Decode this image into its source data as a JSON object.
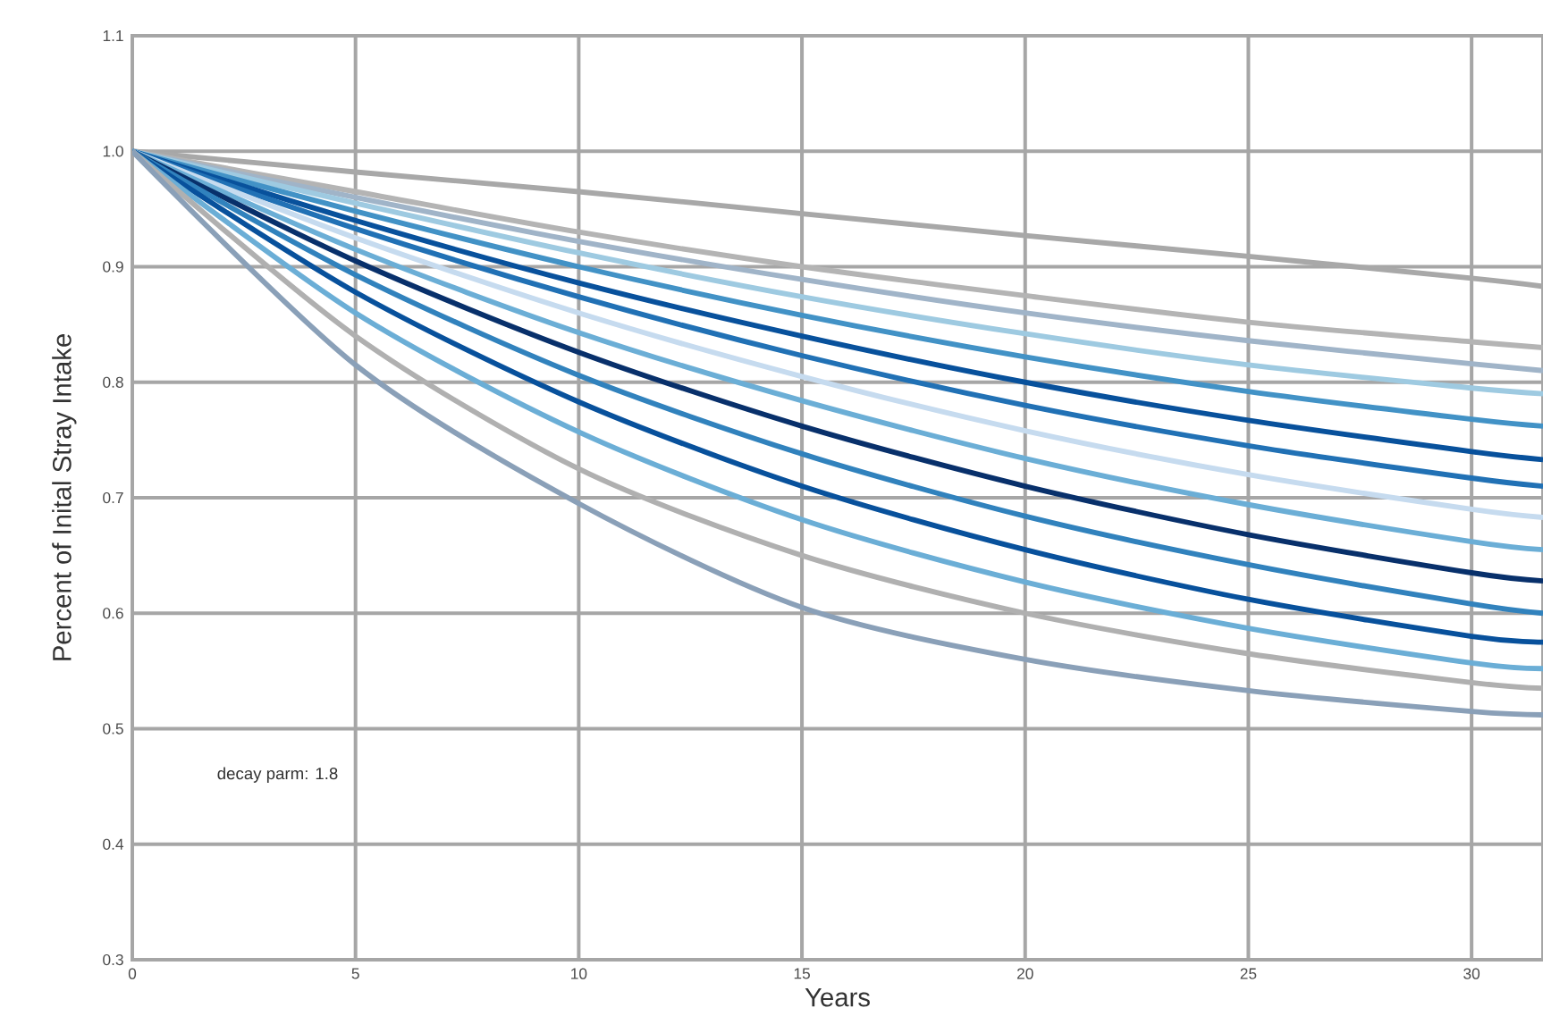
{
  "chart_data": {
    "type": "line",
    "xlabel": "Years",
    "ylabel": "Percent of Inital Stray Intake",
    "annotations": [
      "decay parm: 1.8"
    ],
    "x": [
      0,
      5,
      10,
      15,
      20,
      25,
      30,
      31.6
    ],
    "xlim": [
      0,
      31.6
    ],
    "ylim": [
      0.3,
      1.1
    ],
    "xticks": [
      0,
      5,
      10,
      15,
      20,
      25,
      30
    ],
    "yticks": [
      0.3,
      0.4,
      0.5,
      0.6,
      0.7,
      0.8,
      0.9,
      {
        "value": 1.0,
        "label": "1.0"
      },
      1.1
    ],
    "grid": true,
    "series": [
      {
        "color": "#a8a8a8",
        "values": [
          1,
          0.982,
          0.965,
          0.946,
          0.927,
          0.909,
          0.89,
          0.883
        ]
      },
      {
        "color": "#b4b4b4",
        "values": [
          1,
          0.965,
          0.93,
          0.9,
          0.875,
          0.852,
          0.835,
          0.83
        ]
      },
      {
        "color": "#a0b4c8",
        "values": [
          1,
          0.96,
          0.922,
          0.889,
          0.86,
          0.836,
          0.816,
          0.81
        ]
      },
      {
        "color": "#9ecae1",
        "values": [
          1,
          0.955,
          0.912,
          0.874,
          0.842,
          0.815,
          0.795,
          0.79
        ]
      },
      {
        "color": "#4292c6",
        "values": [
          1,
          0.948,
          0.9,
          0.858,
          0.822,
          0.792,
          0.768,
          0.762
        ]
      },
      {
        "color": "#08519c",
        "values": [
          1,
          0.94,
          0.886,
          0.84,
          0.8,
          0.767,
          0.74,
          0.733
        ]
      },
      {
        "color": "#2171b5",
        "values": [
          1,
          0.933,
          0.874,
          0.823,
          0.78,
          0.745,
          0.717,
          0.71
        ]
      },
      {
        "color": "#c6dbef",
        "values": [
          1,
          0.925,
          0.86,
          0.805,
          0.758,
          0.72,
          0.69,
          0.683
        ]
      },
      {
        "color": "#6baed6",
        "values": [
          1,
          0.915,
          0.843,
          0.784,
          0.734,
          0.694,
          0.662,
          0.655
        ]
      },
      {
        "color": "#08306b",
        "values": [
          1,
          0.905,
          0.826,
          0.762,
          0.71,
          0.668,
          0.635,
          0.628
        ]
      },
      {
        "color": "#3182bd",
        "values": [
          1,
          0.893,
          0.806,
          0.738,
          0.684,
          0.642,
          0.608,
          0.6
        ]
      },
      {
        "color": "#08519c",
        "values": [
          1,
          0.878,
          0.783,
          0.71,
          0.655,
          0.612,
          0.58,
          0.575
        ]
      },
      {
        "color": "#6baed6",
        "values": [
          1,
          0.86,
          0.757,
          0.681,
          0.627,
          0.587,
          0.557,
          0.552
        ]
      },
      {
        "color": "#b0b0b0",
        "values": [
          1,
          0.84,
          0.725,
          0.65,
          0.6,
          0.565,
          0.54,
          0.535
        ]
      },
      {
        "color": "#8aa0b8",
        "values": [
          1,
          0.815,
          0.695,
          0.605,
          0.56,
          0.533,
          0.515,
          0.512
        ]
      }
    ]
  }
}
